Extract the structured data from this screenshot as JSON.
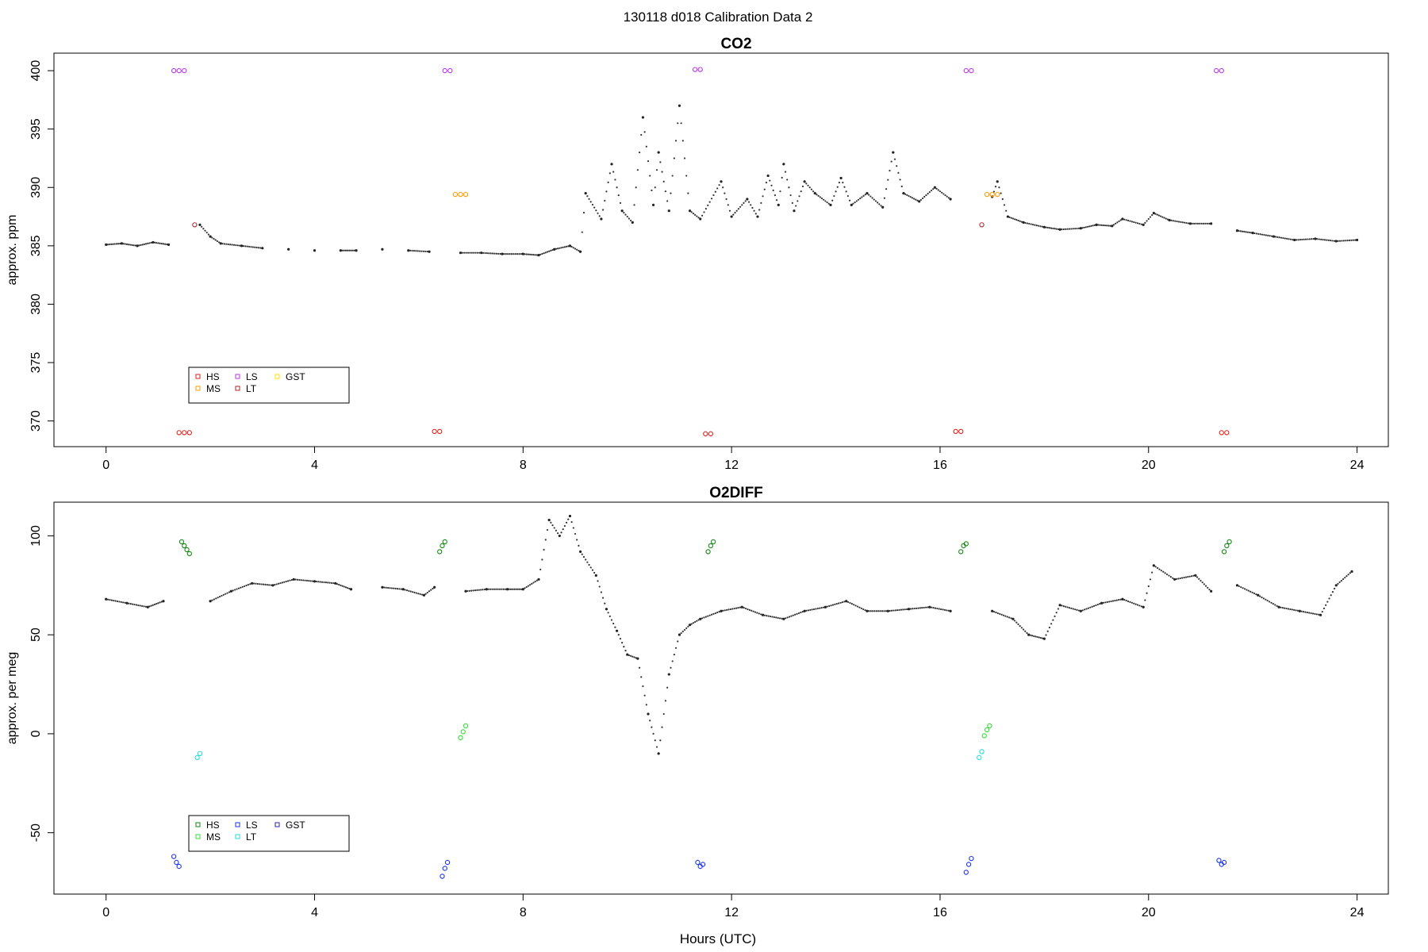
{
  "figure": {
    "title": "130118   d018   Calibration Data 2"
  },
  "chart_data": [
    {
      "type": "scatter",
      "title": "CO2",
      "xlabel": "",
      "ylabel": "approx. ppm",
      "xlim": [
        -1,
        24.6
      ],
      "ylim": [
        367.8,
        401.5
      ],
      "xticks": [
        0,
        4,
        8,
        12,
        16,
        20,
        24
      ],
      "yticks": [
        370,
        375,
        380,
        385,
        390,
        395,
        400
      ],
      "grid": false,
      "legend": {
        "placement": "bottom-left",
        "entries": [
          {
            "name": "HS",
            "color": "#e0201b"
          },
          {
            "name": "MS",
            "color": "#ff9900"
          },
          {
            "name": "LS",
            "color": "#bb33ee"
          },
          {
            "name": "LT",
            "color": "#b3242a"
          },
          {
            "name": "GST",
            "color": "#ffdd00"
          }
        ]
      },
      "trace": [
        [
          0.0,
          385.1
        ],
        [
          0.3,
          385.2
        ],
        [
          0.6,
          385.0
        ],
        [
          0.9,
          385.3
        ],
        [
          1.2,
          385.1
        ],
        [
          1.8,
          386.8
        ],
        [
          2.0,
          385.8
        ],
        [
          2.2,
          385.2
        ],
        [
          2.6,
          385.0
        ],
        [
          3.0,
          384.8
        ],
        [
          3.5,
          384.7
        ],
        [
          4.0,
          384.6
        ],
        [
          4.5,
          384.6
        ],
        [
          4.8,
          384.6
        ],
        [
          5.3,
          384.7
        ],
        [
          5.8,
          384.6
        ],
        [
          6.2,
          384.5
        ],
        [
          6.8,
          384.4
        ],
        [
          7.2,
          384.4
        ],
        [
          7.6,
          384.3
        ],
        [
          8.0,
          384.3
        ],
        [
          8.3,
          384.2
        ],
        [
          8.6,
          384.7
        ],
        [
          8.9,
          385.0
        ],
        [
          9.1,
          384.5
        ],
        [
          9.2,
          389.5
        ],
        [
          9.5,
          387.3
        ],
        [
          9.7,
          392.0
        ],
        [
          9.9,
          388.0
        ],
        [
          10.1,
          387.0
        ],
        [
          10.3,
          396.0
        ],
        [
          10.5,
          388.5
        ],
        [
          10.6,
          393.0
        ],
        [
          10.8,
          388.0
        ],
        [
          11.0,
          397.0
        ],
        [
          11.2,
          388.0
        ],
        [
          11.4,
          387.3
        ],
        [
          11.8,
          390.5
        ],
        [
          12.0,
          387.5
        ],
        [
          12.3,
          389.0
        ],
        [
          12.5,
          387.5
        ],
        [
          12.7,
          391.0
        ],
        [
          12.9,
          388.5
        ],
        [
          13.0,
          392.0
        ],
        [
          13.2,
          388.0
        ],
        [
          13.4,
          390.5
        ],
        [
          13.6,
          389.5
        ],
        [
          13.9,
          388.5
        ],
        [
          14.1,
          390.8
        ],
        [
          14.3,
          388.5
        ],
        [
          14.6,
          389.5
        ],
        [
          14.9,
          388.3
        ],
        [
          15.1,
          393.0
        ],
        [
          15.3,
          389.5
        ],
        [
          15.6,
          388.8
        ],
        [
          15.9,
          390.0
        ],
        [
          16.2,
          389.0
        ],
        [
          17.0,
          389.2
        ],
        [
          17.1,
          390.5
        ],
        [
          17.3,
          387.5
        ],
        [
          17.6,
          387.0
        ],
        [
          18.0,
          386.6
        ],
        [
          18.3,
          386.4
        ],
        [
          18.7,
          386.5
        ],
        [
          19.0,
          386.8
        ],
        [
          19.3,
          386.7
        ],
        [
          19.5,
          387.3
        ],
        [
          19.9,
          386.8
        ],
        [
          20.1,
          387.8
        ],
        [
          20.4,
          387.2
        ],
        [
          20.8,
          386.9
        ],
        [
          21.2,
          386.9
        ],
        [
          21.7,
          386.3
        ],
        [
          22.0,
          386.1
        ],
        [
          22.4,
          385.8
        ],
        [
          22.8,
          385.5
        ],
        [
          23.2,
          385.6
        ],
        [
          23.6,
          385.4
        ],
        [
          24.0,
          385.5
        ]
      ],
      "points": [
        {
          "name": "HS",
          "color": "#e0201b",
          "xy": [
            [
              1.4,
              369.0
            ],
            [
              1.5,
              369.0
            ],
            [
              1.6,
              369.0
            ],
            [
              6.3,
              369.1
            ],
            [
              6.4,
              369.1
            ],
            [
              11.5,
              368.9
            ],
            [
              11.6,
              368.9
            ],
            [
              16.3,
              369.1
            ],
            [
              16.4,
              369.1
            ],
            [
              21.4,
              369.0
            ],
            [
              21.5,
              369.0
            ]
          ]
        },
        {
          "name": "LS",
          "color": "#bb33ee",
          "xy": [
            [
              1.3,
              400.0
            ],
            [
              1.4,
              400.0
            ],
            [
              1.5,
              400.0
            ],
            [
              6.5,
              400.0
            ],
            [
              6.6,
              400.0
            ],
            [
              11.3,
              400.1
            ],
            [
              11.4,
              400.1
            ],
            [
              16.5,
              400.0
            ],
            [
              16.6,
              400.0
            ],
            [
              21.3,
              400.0
            ],
            [
              21.4,
              400.0
            ]
          ]
        },
        {
          "name": "MS",
          "color": "#ff9900",
          "xy": [
            [
              6.7,
              389.4
            ],
            [
              6.8,
              389.4
            ],
            [
              6.9,
              389.4
            ],
            [
              16.9,
              389.4
            ],
            [
              17.0,
              389.4
            ],
            [
              17.1,
              389.4
            ]
          ]
        },
        {
          "name": "LT",
          "color": "#b3242a",
          "xy": [
            [
              1.7,
              386.8
            ],
            [
              16.8,
              386.8
            ]
          ]
        }
      ]
    },
    {
      "type": "scatter",
      "title": "O2DIFF",
      "xlabel": "Hours (UTC)",
      "ylabel": "approx. per meg",
      "xlim": [
        -1,
        24.6
      ],
      "ylim": [
        -81,
        117
      ],
      "xticks": [
        0,
        4,
        8,
        12,
        16,
        20,
        24
      ],
      "yticks": [
        -50,
        0,
        50,
        100
      ],
      "grid": false,
      "legend": {
        "placement": "bottom-left",
        "entries": [
          {
            "name": "HS",
            "color": "#118811"
          },
          {
            "name": "MS",
            "color": "#33dd33"
          },
          {
            "name": "LS",
            "color": "#1a33ee"
          },
          {
            "name": "LT",
            "color": "#22dddd"
          },
          {
            "name": "GST",
            "color": "#2a2a99"
          }
        ]
      },
      "trace": [
        [
          0.0,
          68
        ],
        [
          0.4,
          66
        ],
        [
          0.8,
          64
        ],
        [
          1.1,
          67
        ],
        [
          2.0,
          67
        ],
        [
          2.4,
          72
        ],
        [
          2.8,
          76
        ],
        [
          3.2,
          75
        ],
        [
          3.6,
          78
        ],
        [
          4.0,
          77
        ],
        [
          4.4,
          76
        ],
        [
          4.7,
          73
        ],
        [
          5.3,
          74
        ],
        [
          5.7,
          73
        ],
        [
          6.1,
          70
        ],
        [
          6.3,
          74
        ],
        [
          6.9,
          72
        ],
        [
          7.3,
          73
        ],
        [
          7.7,
          73
        ],
        [
          8.0,
          73
        ],
        [
          8.3,
          78
        ],
        [
          8.5,
          108
        ],
        [
          8.7,
          100
        ],
        [
          8.9,
          110
        ],
        [
          9.1,
          92
        ],
        [
          9.4,
          80
        ],
        [
          9.6,
          63
        ],
        [
          9.8,
          52
        ],
        [
          10.0,
          40
        ],
        [
          10.2,
          38
        ],
        [
          10.4,
          10
        ],
        [
          10.6,
          -10
        ],
        [
          10.8,
          30
        ],
        [
          11.0,
          50
        ],
        [
          11.2,
          55
        ],
        [
          11.4,
          58
        ],
        [
          11.8,
          62
        ],
        [
          12.2,
          64
        ],
        [
          12.6,
          60
        ],
        [
          13.0,
          58
        ],
        [
          13.4,
          62
        ],
        [
          13.8,
          64
        ],
        [
          14.2,
          67
        ],
        [
          14.6,
          62
        ],
        [
          15.0,
          62
        ],
        [
          15.4,
          63
        ],
        [
          15.8,
          64
        ],
        [
          16.2,
          62
        ],
        [
          17.0,
          62
        ],
        [
          17.4,
          58
        ],
        [
          17.7,
          50
        ],
        [
          18.0,
          48
        ],
        [
          18.3,
          65
        ],
        [
          18.7,
          62
        ],
        [
          19.1,
          66
        ],
        [
          19.5,
          68
        ],
        [
          19.9,
          64
        ],
        [
          20.1,
          85
        ],
        [
          20.5,
          78
        ],
        [
          20.9,
          80
        ],
        [
          21.2,
          72
        ],
        [
          21.7,
          75
        ],
        [
          22.1,
          70
        ],
        [
          22.5,
          64
        ],
        [
          22.9,
          62
        ],
        [
          23.3,
          60
        ],
        [
          23.6,
          75
        ],
        [
          23.9,
          82
        ]
      ],
      "points": [
        {
          "name": "HS",
          "color": "#118811",
          "xy": [
            [
              1.45,
              97
            ],
            [
              1.5,
              95
            ],
            [
              1.55,
              93
            ],
            [
              1.6,
              91
            ],
            [
              6.4,
              92
            ],
            [
              6.45,
              95
            ],
            [
              6.5,
              97
            ],
            [
              11.55,
              92
            ],
            [
              11.6,
              95
            ],
            [
              11.65,
              97
            ],
            [
              16.4,
              92
            ],
            [
              16.45,
              95
            ],
            [
              16.5,
              96
            ],
            [
              21.45,
              92
            ],
            [
              21.5,
              95
            ],
            [
              21.55,
              97
            ]
          ]
        },
        {
          "name": "MS",
          "color": "#33dd33",
          "xy": [
            [
              6.8,
              -2
            ],
            [
              6.85,
              1
            ],
            [
              6.9,
              4
            ],
            [
              16.85,
              -1
            ],
            [
              16.9,
              2
            ],
            [
              16.95,
              4
            ]
          ]
        },
        {
          "name": "LS",
          "color": "#1a33ee",
          "xy": [
            [
              1.3,
              -62
            ],
            [
              1.35,
              -65
            ],
            [
              1.4,
              -67
            ],
            [
              6.45,
              -72
            ],
            [
              6.5,
              -68
            ],
            [
              6.55,
              -65
            ],
            [
              11.35,
              -65
            ],
            [
              11.4,
              -67
            ],
            [
              11.45,
              -66
            ],
            [
              16.5,
              -70
            ],
            [
              16.55,
              -66
            ],
            [
              16.6,
              -63
            ],
            [
              21.35,
              -64
            ],
            [
              21.4,
              -66
            ],
            [
              21.45,
              -65
            ]
          ]
        },
        {
          "name": "LT",
          "color": "#22dddd",
          "xy": [
            [
              1.75,
              -12
            ],
            [
              1.8,
              -10
            ],
            [
              16.75,
              -12
            ],
            [
              16.8,
              -9
            ]
          ]
        }
      ]
    }
  ]
}
